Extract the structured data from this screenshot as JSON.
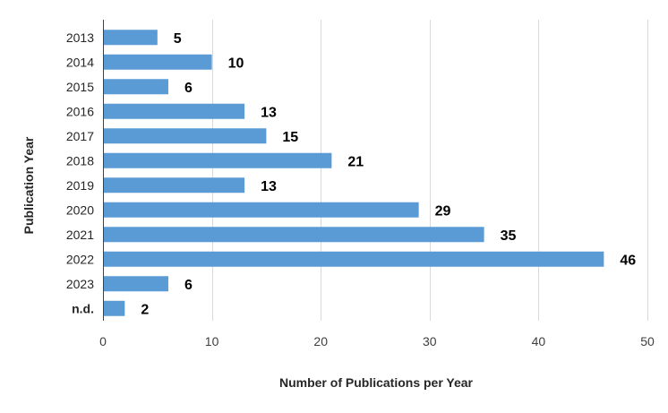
{
  "chart_data": {
    "type": "bar",
    "orientation": "horizontal",
    "categories": [
      "2013",
      "2014",
      "2015",
      "2016",
      "2017",
      "2018",
      "2019",
      "2020",
      "2021",
      "2022",
      "2023",
      "n.d."
    ],
    "values": [
      5,
      10,
      6,
      13,
      15,
      21,
      13,
      29,
      35,
      46,
      6,
      2
    ],
    "title": "",
    "xlabel": "Number of Publications per Year",
    "ylabel": "Publication Year",
    "xlim": [
      0,
      50
    ],
    "xticks": [
      0,
      10,
      20,
      30,
      40,
      50
    ],
    "grid": "vertical",
    "legend": "none",
    "bar_color": "#5B9BD5",
    "grid_color": "#D9D9D9",
    "axis_color": "#404040"
  }
}
